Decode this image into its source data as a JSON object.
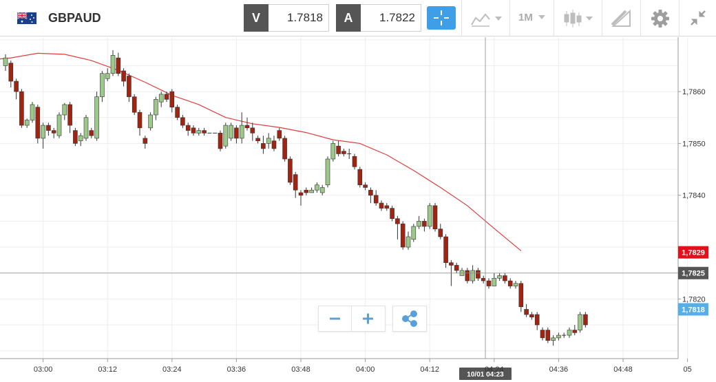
{
  "header": {
    "symbol": "GBPAUD",
    "flag_icon": "gb-au-flag-icon",
    "sell_tag": "V",
    "sell_price": "1.7818",
    "buy_tag": "A",
    "buy_price": "1.7822",
    "timeframe": "1M",
    "accent": "#3f9ee6"
  },
  "chart_data": {
    "type": "candlestick",
    "y_ticks": [
      "1,7860",
      "1,7850",
      "1,7840",
      "1,7820"
    ],
    "y_tick_values": [
      1.786,
      1.785,
      1.784,
      1.782
    ],
    "x_ticks": [
      "03:00",
      "03:12",
      "03:24",
      "03:36",
      "03:48",
      "04:00",
      "04:12",
      "04:24",
      "04:36",
      "04:48",
      "05"
    ],
    "ylim": [
      1.78085,
      1.78705
    ],
    "badges": [
      {
        "label": "1,7829",
        "value": 1.7829,
        "color": "#e3101b"
      },
      {
        "label": "1,7825",
        "value": 1.7825,
        "color": "#555555"
      },
      {
        "label": "1,7818",
        "value": 1.7818,
        "color": "#55aee6"
      }
    ],
    "crosshair": {
      "time_label": "10/01 04:23",
      "price": 1.7825
    },
    "ma_line": [
      [
        -7,
        1.78657
      ],
      [
        1,
        1.78665
      ],
      [
        6,
        1.78674
      ],
      [
        11,
        1.78672
      ],
      [
        16,
        1.7866
      ],
      [
        21,
        1.78641
      ],
      [
        26,
        1.78618
      ],
      [
        31,
        1.78593
      ],
      [
        36,
        1.78575
      ],
      [
        41,
        1.7855
      ],
      [
        46,
        1.78538
      ],
      [
        51,
        1.78531
      ],
      [
        56,
        1.78521
      ],
      [
        61,
        1.78507
      ],
      [
        66,
        1.785
      ],
      [
        71,
        1.78478
      ],
      [
        76,
        1.78448
      ],
      [
        81,
        1.78415
      ],
      [
        86,
        1.7838
      ],
      [
        91,
        1.78336
      ],
      [
        96,
        1.78293
      ]
    ],
    "candles": [
      [
        1.7865,
        1.78665,
        1.7864,
        1.78672
      ],
      [
        1.78655,
        1.7862,
        1.78608,
        1.7866
      ],
      [
        1.7862,
        1.786,
        1.78585,
        1.78625
      ],
      [
        1.786,
        1.78535,
        1.7853,
        1.78605
      ],
      [
        1.78535,
        1.78545,
        1.7853,
        1.78548
      ],
      [
        1.78545,
        1.78575,
        1.7854,
        1.7858
      ],
      [
        1.7857,
        1.7851,
        1.785,
        1.78575
      ],
      [
        1.7851,
        1.78535,
        1.7849,
        1.7854
      ],
      [
        1.78535,
        1.78525,
        1.78515,
        1.7854
      ],
      [
        1.78525,
        1.7852,
        1.7851,
        1.7853
      ],
      [
        1.78515,
        1.78555,
        1.7851,
        1.7856
      ],
      [
        1.78555,
        1.78575,
        1.78545,
        1.78578
      ],
      [
        1.78575,
        1.78535,
        1.7852,
        1.7858
      ],
      [
        1.78525,
        1.785,
        1.78495,
        1.7853
      ],
      [
        1.78505,
        1.78515,
        1.78495,
        1.7852
      ],
      [
        1.7851,
        1.7855,
        1.78505,
        1.78555
      ],
      [
        1.78525,
        1.78515,
        1.7851,
        1.7853
      ],
      [
        1.7851,
        1.7859,
        1.78505,
        1.786
      ],
      [
        1.7859,
        1.78635,
        1.7858,
        1.7864
      ],
      [
        1.78625,
        1.78635,
        1.7862,
        1.78645
      ],
      [
        1.78635,
        1.7867,
        1.7863,
        1.7868
      ],
      [
        1.78665,
        1.78635,
        1.7863,
        1.78675
      ],
      [
        1.7864,
        1.7862,
        1.7861,
        1.78645
      ],
      [
        1.7863,
        1.7859,
        1.7858,
        1.78635
      ],
      [
        1.7859,
        1.7856,
        1.78555,
        1.78595
      ],
      [
        1.7856,
        1.7853,
        1.78515,
        1.78565
      ],
      [
        1.7851,
        1.785,
        1.7849,
        1.78515
      ],
      [
        1.7853,
        1.78555,
        1.78525,
        1.7856
      ],
      [
        1.78555,
        1.78585,
        1.78545,
        1.7859
      ],
      [
        1.7858,
        1.78595,
        1.7857,
        1.786
      ],
      [
        1.78595,
        1.78585,
        1.7858,
        1.786
      ],
      [
        1.786,
        1.7857,
        1.7856,
        1.78605
      ],
      [
        1.7857,
        1.7855,
        1.78545,
        1.78575
      ],
      [
        1.7855,
        1.78535,
        1.7853,
        1.78555
      ],
      [
        1.78535,
        1.78525,
        1.78515,
        1.7854
      ],
      [
        1.7853,
        1.7852,
        1.78515,
        1.78535
      ],
      [
        1.7852,
        1.78525,
        1.78515,
        1.7853
      ],
      [
        1.78525,
        1.7852,
        1.78515,
        1.7853
      ],
      [
        1.7852,
        1.7852,
        1.7852,
        1.7852
      ],
      [
        1.7852,
        1.7852,
        1.7852,
        1.7852
      ],
      [
        1.7852,
        1.7849,
        1.78485,
        1.78525
      ],
      [
        1.78495,
        1.78535,
        1.7849,
        1.7854
      ],
      [
        1.7851,
        1.78535,
        1.78505,
        1.7854
      ],
      [
        1.7853,
        1.7851,
        1.785,
        1.78535
      ],
      [
        1.7851,
        1.78535,
        1.785,
        1.7856
      ],
      [
        1.78535,
        1.7853,
        1.78525,
        1.7855
      ],
      [
        1.7853,
        1.7852,
        1.78505,
        1.7854
      ],
      [
        1.7851,
        1.78505,
        1.785,
        1.78515
      ],
      [
        1.785,
        1.7849,
        1.7848,
        1.78515
      ],
      [
        1.785,
        1.7851,
        1.7849,
        1.7852
      ],
      [
        1.78505,
        1.7849,
        1.78485,
        1.78515
      ],
      [
        1.78525,
        1.7851,
        1.78505,
        1.7853
      ],
      [
        1.7851,
        1.7847,
        1.78465,
        1.78515
      ],
      [
        1.7847,
        1.78425,
        1.7842,
        1.78475
      ],
      [
        1.7844,
        1.7841,
        1.78395,
        1.78445
      ],
      [
        1.78405,
        1.784,
        1.7838,
        1.7841
      ],
      [
        1.7841,
        1.78405,
        1.784,
        1.78415
      ],
      [
        1.78405,
        1.7841,
        1.78405,
        1.78415
      ],
      [
        1.7841,
        1.7842,
        1.78405,
        1.78425
      ],
      [
        1.78405,
        1.78415,
        1.784,
        1.7842
      ],
      [
        1.7842,
        1.7847,
        1.78415,
        1.78475
      ],
      [
        1.7847,
        1.785,
        1.78465,
        1.78505
      ],
      [
        1.78495,
        1.7848,
        1.78475,
        1.78505
      ],
      [
        1.78485,
        1.7848,
        1.78475,
        1.7849
      ],
      [
        1.7848,
        1.7848,
        1.7847,
        1.7849
      ],
      [
        1.78475,
        1.78455,
        1.7845,
        1.7848
      ],
      [
        1.7845,
        1.7842,
        1.78415,
        1.78455
      ],
      [
        1.7842,
        1.78415,
        1.7841,
        1.78425
      ],
      [
        1.7841,
        1.784,
        1.78385,
        1.78415
      ],
      [
        1.784,
        1.78385,
        1.7838,
        1.7841
      ],
      [
        1.78385,
        1.78375,
        1.7837,
        1.7839
      ],
      [
        1.7838,
        1.78375,
        1.7837,
        1.78385
      ],
      [
        1.78375,
        1.78355,
        1.7835,
        1.7838
      ],
      [
        1.78355,
        1.78345,
        1.78315,
        1.7836
      ],
      [
        1.78345,
        1.783,
        1.78295,
        1.7835
      ],
      [
        1.783,
        1.7832,
        1.78295,
        1.7833
      ],
      [
        1.78315,
        1.7834,
        1.7831,
        1.78345
      ],
      [
        1.7834,
        1.7835,
        1.78335,
        1.7836
      ],
      [
        1.7835,
        1.7834,
        1.7833,
        1.78355
      ],
      [
        1.7834,
        1.7838,
        1.78335,
        1.78385
      ],
      [
        1.7838,
        1.78335,
        1.7833,
        1.78385
      ],
      [
        1.78335,
        1.7832,
        1.78315,
        1.78345
      ],
      [
        1.7832,
        1.7827,
        1.7826,
        1.78325
      ],
      [
        1.7827,
        1.78265,
        1.78225,
        1.78275
      ],
      [
        1.78265,
        1.78255,
        1.7825,
        1.7827
      ],
      [
        1.78245,
        1.78255,
        1.78245,
        1.7826
      ],
      [
        1.78255,
        1.78235,
        1.7823,
        1.7826
      ],
      [
        1.78235,
        1.78255,
        1.7823,
        1.78265
      ],
      [
        1.78255,
        1.7824,
        1.78235,
        1.7826
      ],
      [
        1.7824,
        1.78235,
        1.7823,
        1.78245
      ],
      [
        1.78235,
        1.78225,
        1.7822,
        1.7824
      ],
      [
        1.78225,
        1.7824,
        1.78225,
        1.7825
      ],
      [
        1.7824,
        1.78245,
        1.78235,
        1.7825
      ],
      [
        1.78245,
        1.78235,
        1.7823,
        1.7825
      ],
      [
        1.78235,
        1.78225,
        1.7822,
        1.7824
      ],
      [
        1.78225,
        1.7823,
        1.7822,
        1.78235
      ],
      [
        1.7823,
        1.78185,
        1.78175,
        1.78235
      ],
      [
        1.7818,
        1.7817,
        1.78165,
        1.7819
      ],
      [
        1.7817,
        1.78165,
        1.7816,
        1.78175
      ],
      [
        1.7817,
        1.7815,
        1.7814,
        1.78175
      ],
      [
        1.7814,
        1.78125,
        1.7812,
        1.78145
      ],
      [
        1.7814,
        1.7812,
        1.78115,
        1.78145
      ],
      [
        1.7812,
        1.78125,
        1.7811,
        1.7813
      ],
      [
        1.78125,
        1.7813,
        1.7812,
        1.78135
      ],
      [
        1.7813,
        1.7813,
        1.78125,
        1.78135
      ],
      [
        1.7813,
        1.7814,
        1.78125,
        1.78145
      ],
      [
        1.7814,
        1.78135,
        1.7813,
        1.7815
      ],
      [
        1.7814,
        1.7817,
        1.78135,
        1.78175
      ],
      [
        1.7817,
        1.7815,
        1.78145,
        1.78175
      ]
    ],
    "grid": true
  }
}
